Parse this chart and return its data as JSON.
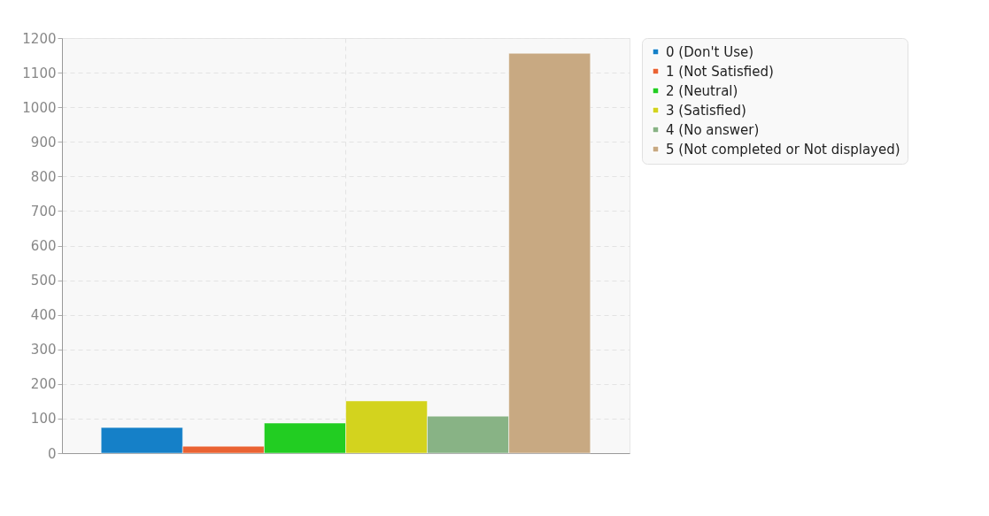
{
  "chart_data": {
    "type": "bar",
    "categories": [
      null
    ],
    "series": [
      {
        "name": "0 (Don't Use)",
        "color": "#1580c8",
        "values": [
          74
        ]
      },
      {
        "name": "1 (Not Satisfied)",
        "color": "#ea6333",
        "values": [
          20
        ]
      },
      {
        "name": "2 (Neutral)",
        "color": "#22cd22",
        "values": [
          87
        ]
      },
      {
        "name": "3 (Satisfied)",
        "color": "#d3d31e",
        "values": [
          151
        ]
      },
      {
        "name": "4 (No answer)",
        "color": "#88b385",
        "values": [
          107
        ]
      },
      {
        "name": "5 (Not completed or Not displayed)",
        "color": "#c8a982",
        "values": [
          1156
        ]
      }
    ],
    "ylim": [
      0,
      1200
    ],
    "yticks": [
      0,
      100,
      200,
      300,
      400,
      500,
      600,
      700,
      800,
      900,
      1000,
      1100,
      1200
    ],
    "grid": true,
    "legend": "right",
    "tick_labels": "y"
  }
}
